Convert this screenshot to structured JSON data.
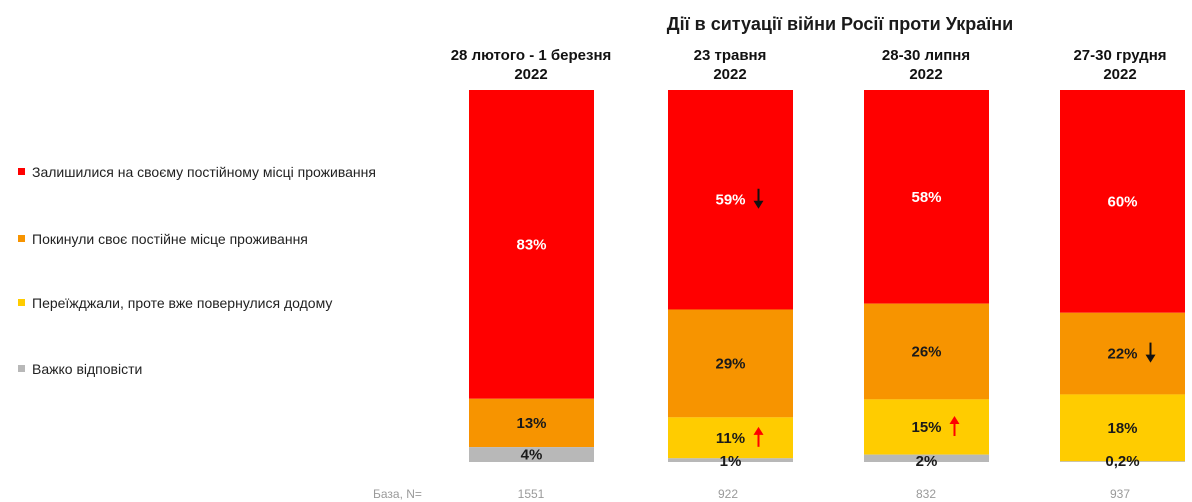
{
  "chart_data": {
    "type": "bar",
    "stacked": true,
    "orientation": "vertical",
    "title": "Дії в ситуації війни Росії проти України",
    "categories": [
      [
        "28 лютого - 1 березня",
        "2022"
      ],
      [
        "23 травня",
        "2022"
      ],
      [
        "28-30 липня",
        "2022"
      ],
      [
        "27-30 грудня",
        "2022"
      ]
    ],
    "series": [
      {
        "name": "Залишилися на своєму постійному місці проживання",
        "color": "#ff0000",
        "label_color": "#ffffff",
        "values": [
          83,
          59,
          58,
          60
        ],
        "labels": [
          "83%",
          "59%",
          "58%",
          "60%"
        ]
      },
      {
        "name": "Покинули своє постійне місце проживання",
        "color": "#f79400",
        "label_color": "#1a1a1a",
        "values": [
          13,
          29,
          26,
          22
        ],
        "labels": [
          "13%",
          "29%",
          "26%",
          "22%"
        ]
      },
      {
        "name": "Переїжджали, проте вже повернулися додому",
        "color": "#ffcc00",
        "label_color": "#1a1a1a",
        "values": [
          0,
          11,
          15,
          18
        ],
        "labels": [
          "",
          "11%",
          "15%",
          "18%"
        ]
      },
      {
        "name": "Важко відповісти",
        "color": "#b8b8b8",
        "label_color": "#1a1a1a",
        "values": [
          4,
          1,
          2,
          0.2
        ],
        "labels": [
          "4%",
          "1%",
          "2%",
          "0,2%"
        ]
      }
    ],
    "annotations": [
      {
        "category": 1,
        "series": 0,
        "icon": "arrow-down-icon",
        "color": "#111111"
      },
      {
        "category": 1,
        "series": 2,
        "icon": "arrow-up-icon",
        "color": "#ff0000"
      },
      {
        "category": 2,
        "series": 2,
        "icon": "arrow-up-icon",
        "color": "#ff0000"
      },
      {
        "category": 3,
        "series": 1,
        "icon": "arrow-down-icon",
        "color": "#111111"
      }
    ],
    "base": {
      "label": "База, N=",
      "values": [
        "1551",
        "922",
        "832",
        "937"
      ]
    },
    "legend_position": "left",
    "grid": false
  }
}
